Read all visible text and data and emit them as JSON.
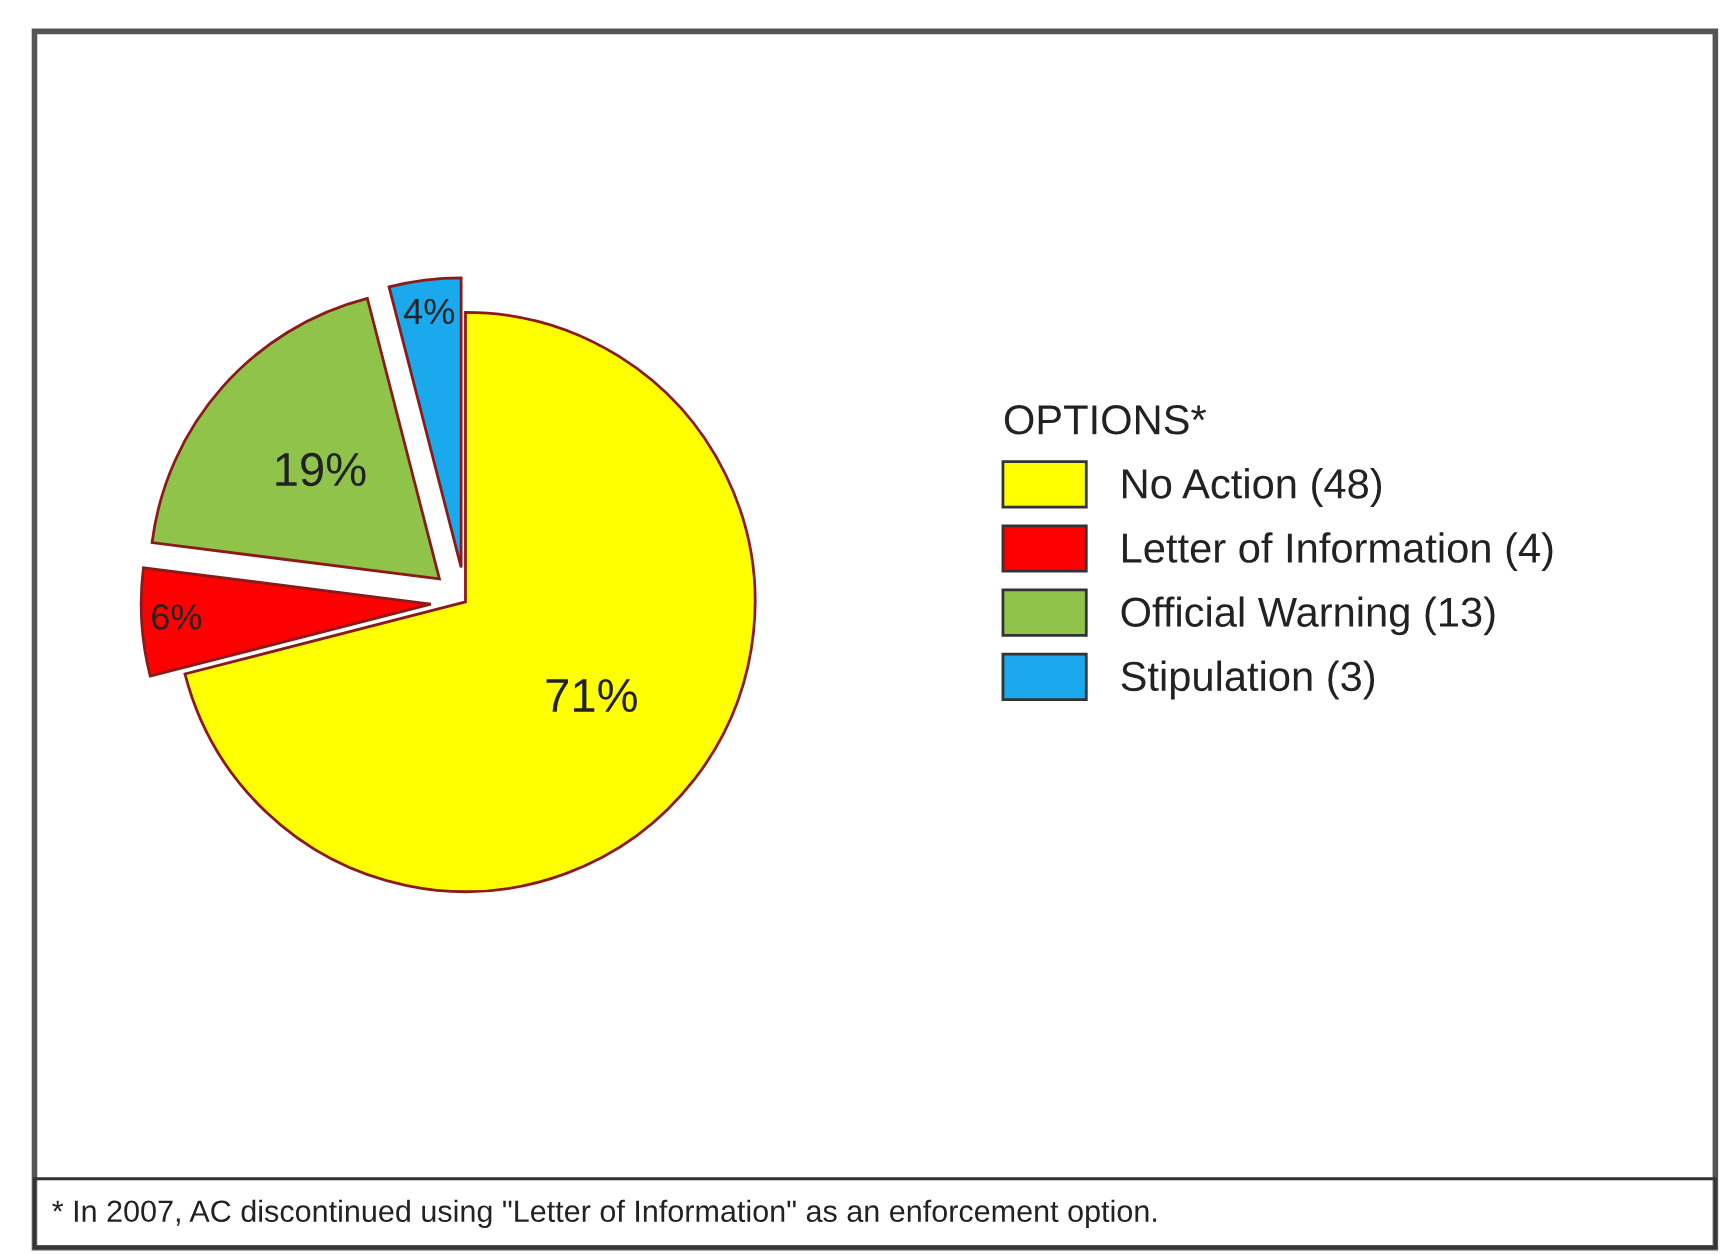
{
  "chart_data": {
    "type": "pie",
    "categories": [
      "No Action (48)",
      "Letter of Information (4)",
      "Official Warning (13)",
      "Stipulation (3)"
    ],
    "values": [
      71,
      6,
      19,
      4
    ],
    "colors": [
      "#ffff00",
      "#ff0000",
      "#8fc34a",
      "#1aa9ec"
    ],
    "value_labels": [
      "71%",
      "6%",
      "19%",
      "4%"
    ],
    "legend_title": "OPTIONS*",
    "legend": "right",
    "annotations": [
      "* In 2007, AC discontinued using \"Letter of Information\" as an enforcement option."
    ]
  }
}
